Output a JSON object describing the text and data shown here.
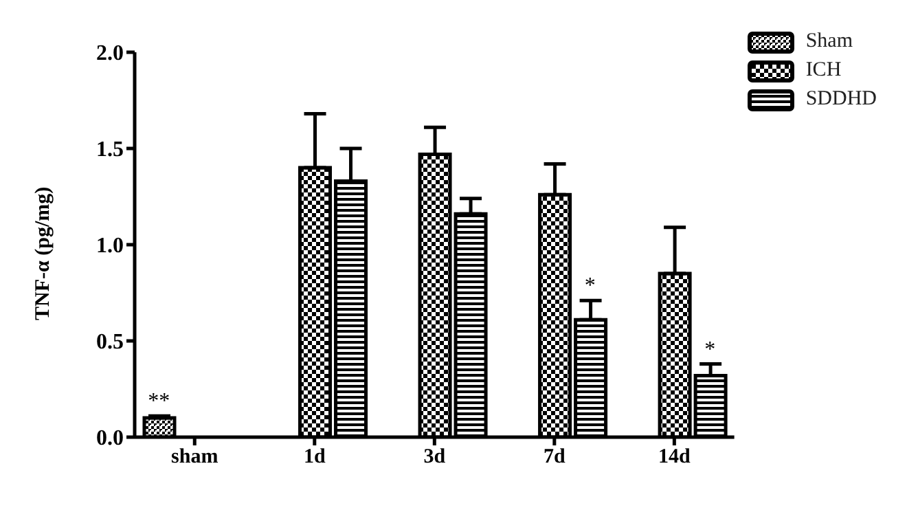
{
  "chart_data": {
    "type": "bar",
    "ylabel": "TNF-α (pg/mg)",
    "categories": [
      "sham",
      "1d",
      "3d",
      "7d",
      "14d"
    ],
    "series": [
      {
        "name": "Sham",
        "color": "#000000",
        "values": [
          0.1,
          null,
          null,
          null,
          null
        ],
        "errors": [
          [
            0.1,
            0.11
          ],
          null,
          null,
          null,
          null
        ],
        "value_labels": [
          "**",
          null,
          null,
          null,
          null
        ]
      },
      {
        "name": "ICH",
        "color": "#000000",
        "values": [
          null,
          1.4,
          1.47,
          1.26,
          0.85
        ],
        "errors": [
          null,
          [
            1.4,
            1.68
          ],
          [
            1.47,
            1.61
          ],
          [
            1.26,
            1.42
          ],
          [
            0.85,
            1.09
          ]
        ]
      },
      {
        "name": "SDDHD",
        "color": "#000000",
        "values": [
          null,
          1.33,
          1.16,
          0.61,
          0.32
        ],
        "errors": [
          null,
          [
            1.33,
            1.5
          ],
          [
            1.16,
            1.24
          ],
          [
            0.61,
            0.71
          ],
          [
            0.32,
            0.38
          ]
        ],
        "value_labels": [
          null,
          null,
          null,
          "*",
          "*"
        ]
      }
    ],
    "ylim": [
      0,
      2
    ],
    "yticks": [
      {
        "value": 0,
        "label": "0.0"
      },
      0.5,
      {
        "value": 1,
        "label": "1.0"
      },
      1.5,
      {
        "value": 2,
        "label": "2.0"
      }
    ],
    "grid": false,
    "legend": "top right"
  }
}
